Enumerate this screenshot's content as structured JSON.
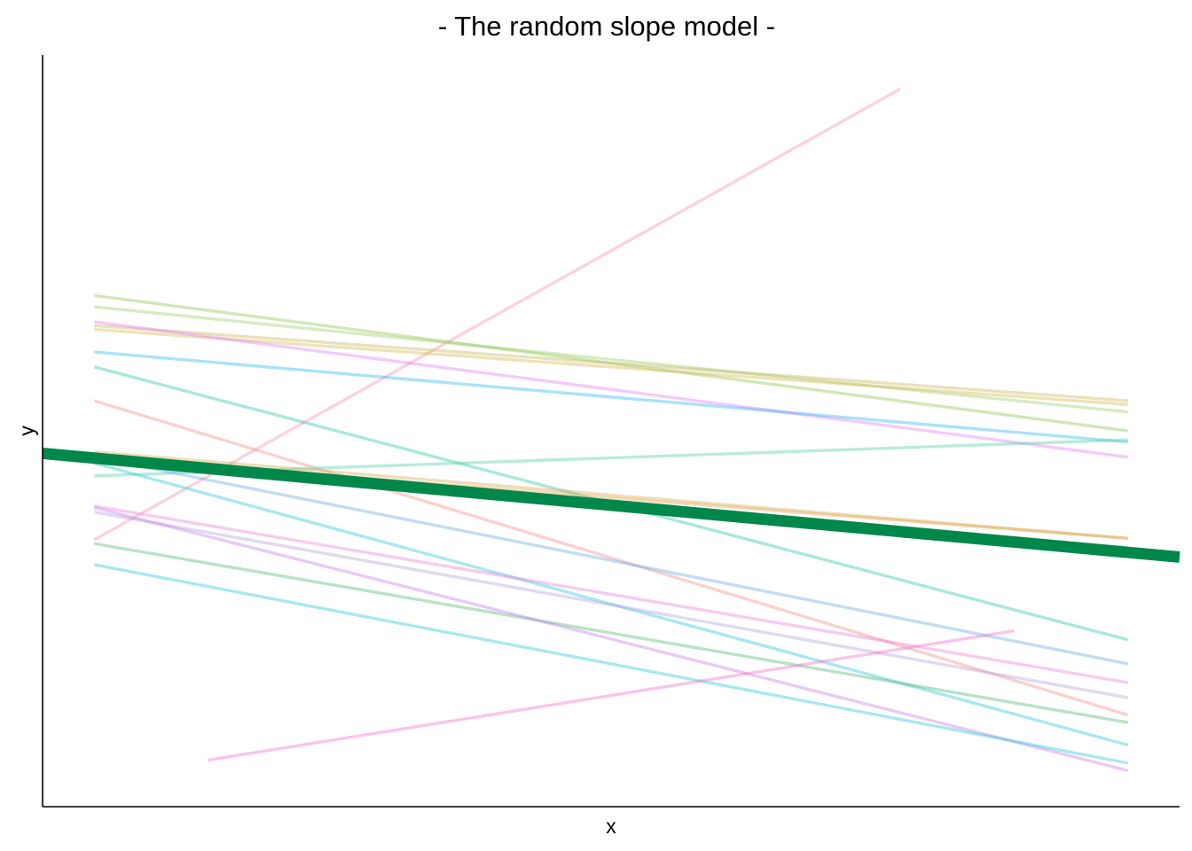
{
  "chart_data": {
    "type": "line",
    "title": "- The random slope model -",
    "xlabel": "x",
    "ylabel": "y",
    "xlim": [
      -0.5,
      10.5
    ],
    "ylim": [
      0,
      10
    ],
    "grid": false,
    "legend": "none",
    "axis_ticks": false,
    "series": [
      {
        "color": "#F48FB1",
        "x": [
          0,
          7.8
        ],
        "y": [
          3.55,
          9.55
        ]
      },
      {
        "color": "#8BC34A",
        "x": [
          0,
          10
        ],
        "y": [
          6.8,
          5.0
        ]
      },
      {
        "color": "#9CCC65",
        "x": [
          0,
          10
        ],
        "y": [
          6.65,
          5.25
        ]
      },
      {
        "color": "#C5B358",
        "x": [
          0,
          10
        ],
        "y": [
          6.4,
          5.4
        ]
      },
      {
        "color": "#D4B948",
        "x": [
          0,
          10
        ],
        "y": [
          6.35,
          5.35
        ]
      },
      {
        "color": "#E879F9",
        "x": [
          0,
          10
        ],
        "y": [
          6.45,
          4.65
        ]
      },
      {
        "color": "#29B6F6",
        "x": [
          0,
          10
        ],
        "y": [
          6.05,
          4.85
        ]
      },
      {
        "color": "#26C6A2",
        "x": [
          0,
          10
        ],
        "y": [
          5.85,
          2.22
        ]
      },
      {
        "color": "#F28B82",
        "x": [
          0,
          10
        ],
        "y": [
          5.4,
          1.22
        ]
      },
      {
        "color": "#4DD0A0",
        "x": [
          0,
          10
        ],
        "y": [
          4.4,
          4.88
        ]
      },
      {
        "color": "#E6A050",
        "x": [
          0,
          10
        ],
        "y": [
          4.65,
          3.57
        ]
      },
      {
        "color": "#D4A94A",
        "x": [
          0,
          10
        ],
        "y": [
          4.72,
          3.57
        ]
      },
      {
        "color": "#26C6DA",
        "x": [
          0,
          10
        ],
        "y": [
          4.57,
          0.82
        ]
      },
      {
        "color": "#64A8F0",
        "x": [
          0,
          10
        ],
        "y": [
          4.65,
          1.9
        ]
      },
      {
        "color": "#EC7CD6",
        "x": [
          0,
          10
        ],
        "y": [
          4.0,
          1.65
        ]
      },
      {
        "color": "#B39DDB",
        "x": [
          0,
          10
        ],
        "y": [
          3.92,
          1.45
        ]
      },
      {
        "color": "#4DB870",
        "x": [
          0,
          10
        ],
        "y": [
          3.5,
          1.12
        ]
      },
      {
        "color": "#C67BEA",
        "x": [
          0,
          10
        ],
        "y": [
          3.98,
          0.48
        ]
      },
      {
        "color": "#26C6DA",
        "x": [
          0,
          10
        ],
        "y": [
          3.22,
          0.58
        ]
      },
      {
        "color": "#F06ECA",
        "x": [
          1.1,
          8.9
        ],
        "y": [
          0.62,
          2.34
        ]
      }
    ],
    "fixed_effect": {
      "color": "#00874A",
      "x": [
        -0.5,
        10.5
      ],
      "y": [
        4.7,
        3.32
      ]
    }
  }
}
